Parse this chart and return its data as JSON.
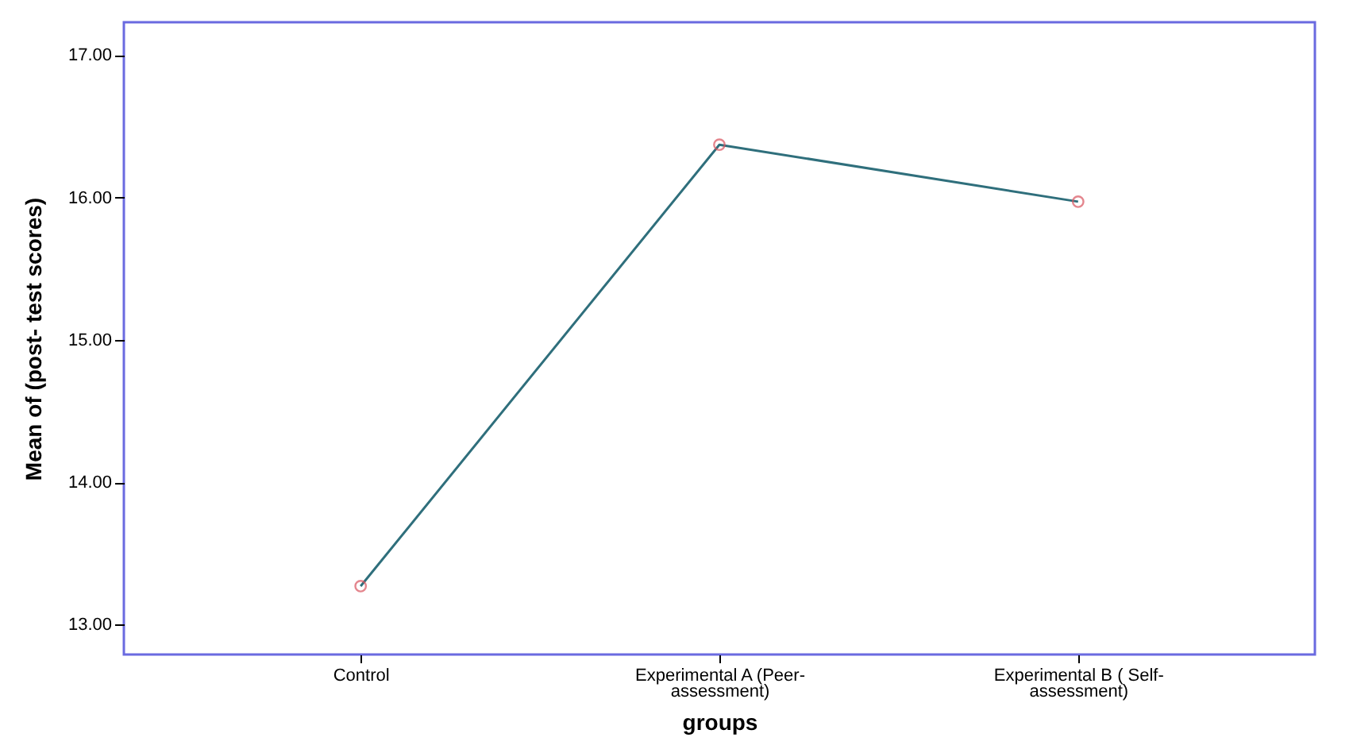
{
  "chart_data": {
    "type": "line",
    "xlabel": "groups",
    "ylabel": "Mean of (post- test scores)",
    "categories": [
      "Control",
      "Experimental A (Peer-assessment)",
      "Experimental B ( Self-assessment)"
    ],
    "series": [
      {
        "color": "#2f6f7c",
        "colors": [
          "#d9545f",
          "#d9545f",
          "#d9545f"
        ],
        "values": [
          13.27,
          16.37,
          15.97
        ]
      }
    ],
    "ylim": [
      12.79,
      17.23
    ],
    "yticks": [
      {
        "value": 13,
        "label": "13.00"
      },
      {
        "value": 14,
        "label": "14.00"
      },
      {
        "value": 15,
        "label": "15.00"
      },
      {
        "value": 16,
        "label": "16.00"
      },
      {
        "value": 17,
        "label": "17.00"
      }
    ],
    "grid": false,
    "marker": "circle",
    "line_style": "solid"
  }
}
